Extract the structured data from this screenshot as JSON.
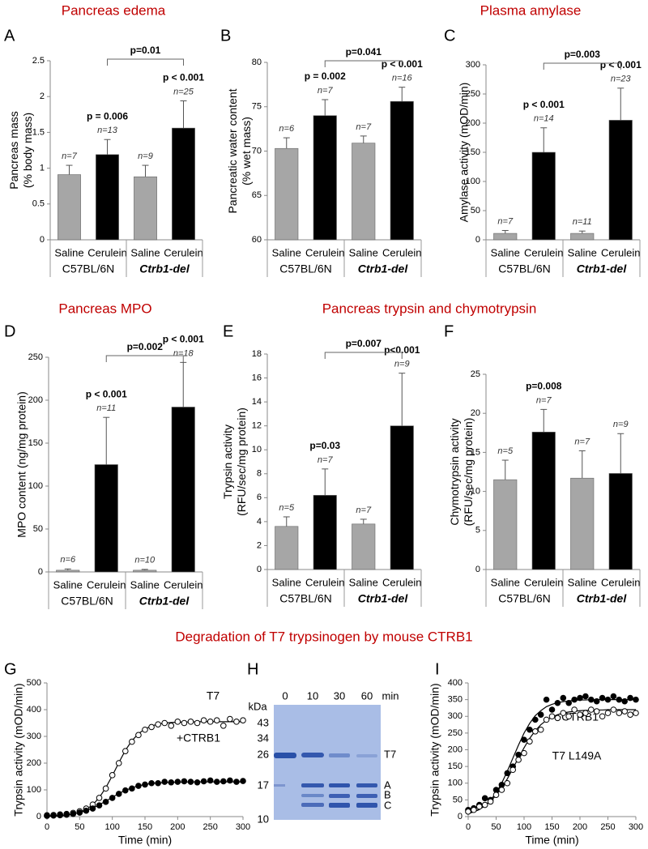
{
  "section_titles": [
    "Pancreas edema",
    "Plasma amylase",
    "Pancreas MPO",
    "Pancreas trypsin and chymotrypsin",
    "Degradation of T7 trypsinogen by mouse CTRB1"
  ],
  "chart_data": [
    {
      "type": "bar",
      "label": "A",
      "ylabel": [
        "Pancreas mass",
        "(% body mass)"
      ],
      "categories": [
        "Saline",
        "Cerulein",
        "Saline",
        "Cerulein"
      ],
      "groups": [
        {
          "name": "C57BL/6N",
          "bold_italic": false
        },
        {
          "name": "Ctrb1-del",
          "bold_italic": true
        }
      ],
      "colors": [
        "#a6a6a6",
        "#000000",
        "#a6a6a6",
        "#000000"
      ],
      "values": [
        0.91,
        1.19,
        0.88,
        1.56
      ],
      "errors": [
        0.13,
        0.21,
        0.16,
        0.38
      ],
      "n_labels": [
        "n=7",
        "n=13",
        "n=9",
        "n=25"
      ],
      "p_labels": [
        null,
        "p = 0.006",
        null,
        "p < 0.001"
      ],
      "bracket": {
        "from": 1,
        "to": 3,
        "label": "p=0.01"
      },
      "ylim": [
        0,
        2.5
      ],
      "yticks": [
        0,
        0.5,
        1,
        1.5,
        2,
        2.5
      ]
    },
    {
      "type": "bar",
      "label": "B",
      "ylabel": [
        "Pancreatic water content",
        "(% wet mass)"
      ],
      "categories": [
        "Saline",
        "Cerulein",
        "Saline",
        "Cerulein"
      ],
      "groups": [
        {
          "name": "C57BL/6N",
          "bold_italic": false
        },
        {
          "name": "Ctrb1-del",
          "bold_italic": true
        }
      ],
      "colors": [
        "#a6a6a6",
        "#000000",
        "#a6a6a6",
        "#000000"
      ],
      "values": [
        70.3,
        74.0,
        70.9,
        75.6
      ],
      "errors": [
        1.2,
        1.8,
        0.8,
        1.6
      ],
      "n_labels": [
        "n=6",
        "n=7",
        "n=7",
        "n=16"
      ],
      "p_labels": [
        null,
        "p = 0.002",
        null,
        "p < 0.001"
      ],
      "bracket": {
        "from": 1,
        "to": 3,
        "label": "p=0.041"
      },
      "ylim": [
        60,
        80
      ],
      "yticks": [
        60,
        65,
        70,
        75,
        80
      ]
    },
    {
      "type": "bar",
      "label": "C",
      "ylabel": [
        "Amylase activity (mOD/min)"
      ],
      "categories": [
        "Saline",
        "Cerulein",
        "Saline",
        "Cerulein"
      ],
      "groups": [
        {
          "name": "C57BL/6N",
          "bold_italic": false
        },
        {
          "name": "Ctrb1-del",
          "bold_italic": true
        }
      ],
      "colors": [
        "#a6a6a6",
        "#000000",
        "#a6a6a6",
        "#000000"
      ],
      "values": [
        11,
        150,
        11,
        205
      ],
      "errors": [
        5,
        42,
        4,
        55
      ],
      "n_labels": [
        "n=7",
        "n=14",
        "n=11",
        "n=23"
      ],
      "p_labels": [
        null,
        "p < 0.001",
        null,
        "p < 0.001"
      ],
      "bracket": {
        "from": 1,
        "to": 3,
        "label": "p=0.003"
      },
      "ylim": [
        0,
        300
      ],
      "yticks": [
        0,
        50,
        100,
        150,
        200,
        250,
        300
      ]
    },
    {
      "type": "bar",
      "label": "D",
      "ylabel": [
        "MPO content (ng/mg protein)"
      ],
      "categories": [
        "Saline",
        "Cerulein",
        "Saline",
        "Cerulein"
      ],
      "groups": [
        {
          "name": "C57BL/6N",
          "bold_italic": false
        },
        {
          "name": "Ctrb1-del",
          "bold_italic": true
        }
      ],
      "colors": [
        "#a6a6a6",
        "#000000",
        "#a6a6a6",
        "#000000"
      ],
      "values": [
        2,
        125,
        2,
        192
      ],
      "errors": [
        1.5,
        55,
        1,
        52
      ],
      "n_labels": [
        "n=6",
        "n=11",
        "n=10",
        "n=18"
      ],
      "p_labels": [
        null,
        "p < 0.001",
        null,
        "p < 0.001"
      ],
      "bracket": {
        "from": 1,
        "to": 3,
        "label": "p=0.002"
      },
      "ylim": [
        0,
        250
      ],
      "yticks": [
        0,
        50,
        100,
        150,
        200,
        250
      ]
    },
    {
      "type": "bar",
      "label": "E",
      "ylabel": [
        "Trypsin activity",
        "(RFU/sec/mg protein)"
      ],
      "categories": [
        "Saline",
        "Cerulein",
        "Saline",
        "Cerulein"
      ],
      "groups": [
        {
          "name": "C57BL/6N",
          "bold_italic": false
        },
        {
          "name": "Ctrb1-del",
          "bold_italic": true
        }
      ],
      "colors": [
        "#a6a6a6",
        "#000000",
        "#a6a6a6",
        "#000000"
      ],
      "values": [
        3.6,
        6.2,
        3.8,
        12.0
      ],
      "errors": [
        0.8,
        2.2,
        0.4,
        4.4
      ],
      "n_labels": [
        "n=5",
        "n=7",
        "n=7",
        "n=9"
      ],
      "p_labels": [
        null,
        "p=0.03",
        null,
        "p<0.001"
      ],
      "bracket": {
        "from": 1,
        "to": 3,
        "label": "p=0.007"
      },
      "ylim": [
        0,
        18
      ],
      "yticks": [
        0,
        2,
        4,
        6,
        8,
        10,
        12,
        14,
        16,
        18
      ]
    },
    {
      "type": "bar",
      "label": "F",
      "ylabel": [
        "Chymotrypsin activity",
        "(RFU/sec/mg protein)"
      ],
      "categories": [
        "Saline",
        "Cerulein",
        "Saline",
        "Cerulein"
      ],
      "groups": [
        {
          "name": "C57BL/6N",
          "bold_italic": false
        },
        {
          "name": "Ctrb1-del",
          "bold_italic": true
        }
      ],
      "colors": [
        "#a6a6a6",
        "#000000",
        "#a6a6a6",
        "#000000"
      ],
      "values": [
        11.5,
        17.6,
        11.7,
        12.3
      ],
      "errors": [
        2.5,
        2.9,
        3.5,
        5.1
      ],
      "n_labels": [
        "n=5",
        "n=7",
        "n=7",
        "n=9"
      ],
      "p_labels": [
        null,
        "p=0.008",
        null,
        null
      ],
      "ylim": [
        0,
        25
      ],
      "yticks": [
        0,
        5,
        10,
        15,
        20,
        25
      ]
    },
    {
      "type": "scatter",
      "label": "G",
      "ylabel": [
        "Trypsin activity (mOD/min)"
      ],
      "xlabel": "Time (min)",
      "x": [
        0,
        10,
        20,
        30,
        40,
        50,
        60,
        70,
        80,
        90,
        100,
        110,
        120,
        130,
        140,
        150,
        160,
        170,
        180,
        190,
        200,
        210,
        220,
        230,
        240,
        250,
        260,
        270,
        280,
        290,
        300
      ],
      "xlim": [
        0,
        300
      ],
      "xticks": [
        0,
        50,
        100,
        150,
        200,
        250,
        300
      ],
      "ylim": [
        0,
        500
      ],
      "yticks": [
        0,
        100,
        200,
        300,
        400,
        500
      ],
      "series": [
        {
          "name": "T7",
          "marker": "open",
          "color": "#000000",
          "values": [
            5,
            6,
            8,
            10,
            14,
            20,
            30,
            45,
            70,
            105,
            155,
            200,
            245,
            280,
            305,
            325,
            335,
            345,
            350,
            340,
            355,
            350,
            355,
            350,
            360,
            355,
            360,
            340,
            365,
            355,
            360
          ],
          "fit": [
            1,
            2,
            3,
            5,
            9,
            16,
            27,
            44,
            71,
            108,
            153,
            202,
            248,
            284,
            310,
            328,
            339,
            346,
            350,
            352,
            353,
            354,
            354,
            355,
            355,
            355,
            355,
            355,
            355,
            355,
            355
          ]
        },
        {
          "name": "+CTRB1",
          "marker": "filled",
          "color": "#000000",
          "values": [
            3,
            4,
            5,
            7,
            10,
            15,
            22,
            30,
            42,
            55,
            70,
            85,
            98,
            105,
            115,
            120,
            125,
            125,
            130,
            128,
            130,
            132,
            130,
            128,
            132,
            135,
            130,
            132,
            135,
            130,
            133
          ],
          "fit": [
            2,
            3,
            4,
            7,
            10,
            15,
            22,
            32,
            44,
            58,
            72,
            87,
            98,
            108,
            115,
            120,
            124,
            126,
            127,
            128,
            129,
            129,
            130,
            130,
            130,
            130,
            130,
            130,
            130,
            130,
            130
          ]
        }
      ]
    },
    {
      "type": "scatter",
      "label": "I",
      "ylabel": [
        "Trypsin activity (mOD/min)"
      ],
      "xlabel": "Time (min)",
      "x": [
        0,
        10,
        20,
        30,
        40,
        50,
        60,
        70,
        80,
        90,
        100,
        110,
        120,
        130,
        140,
        150,
        160,
        170,
        180,
        190,
        200,
        210,
        220,
        230,
        240,
        250,
        260,
        270,
        280,
        290,
        300
      ],
      "xlim": [
        0,
        300
      ],
      "xticks": [
        0,
        50,
        100,
        150,
        200,
        250,
        300
      ],
      "ylim": [
        0,
        400
      ],
      "yticks": [
        0,
        50,
        100,
        150,
        200,
        250,
        300,
        350,
        400
      ],
      "series": [
        {
          "name": "+CTRB1",
          "marker": "filled",
          "color": "#000000",
          "values": [
            20,
            25,
            35,
            55,
            50,
            80,
            95,
            130,
            150,
            185,
            230,
            260,
            290,
            305,
            350,
            320,
            340,
            355,
            340,
            350,
            355,
            360,
            350,
            345,
            355,
            350,
            360,
            350,
            345,
            355,
            350
          ],
          "fit": [
            9,
            14,
            21,
            33,
            49,
            71,
            100,
            136,
            175,
            214,
            250,
            279,
            302,
            317,
            329,
            336,
            341,
            344,
            346,
            348,
            349,
            349,
            350,
            350,
            350,
            350,
            350,
            350,
            350,
            350,
            350
          ]
        },
        {
          "name": "T7 L149A",
          "marker": "open",
          "color": "#000000",
          "values": [
            15,
            20,
            30,
            35,
            45,
            65,
            80,
            100,
            140,
            170,
            190,
            225,
            255,
            260,
            290,
            300,
            295,
            310,
            300,
            320,
            305,
            310,
            320,
            315,
            300,
            310,
            320,
            310,
            315,
            305,
            310
          ],
          "fit": [
            10,
            15,
            22,
            32,
            46,
            64,
            86,
            113,
            144,
            176,
            206,
            234,
            257,
            275,
            288,
            298,
            305,
            310,
            313,
            315,
            317,
            318,
            318,
            319,
            319,
            320,
            320,
            320,
            320,
            320,
            320
          ]
        }
      ]
    }
  ],
  "gel": {
    "label": "H",
    "unit": "kDa",
    "markers": [
      43,
      34,
      26,
      17,
      10
    ],
    "lanes": [
      "0",
      "10",
      "30",
      "60"
    ],
    "lane_unit": "min",
    "bands": [
      "T7",
      "A",
      "B",
      "C"
    ]
  }
}
